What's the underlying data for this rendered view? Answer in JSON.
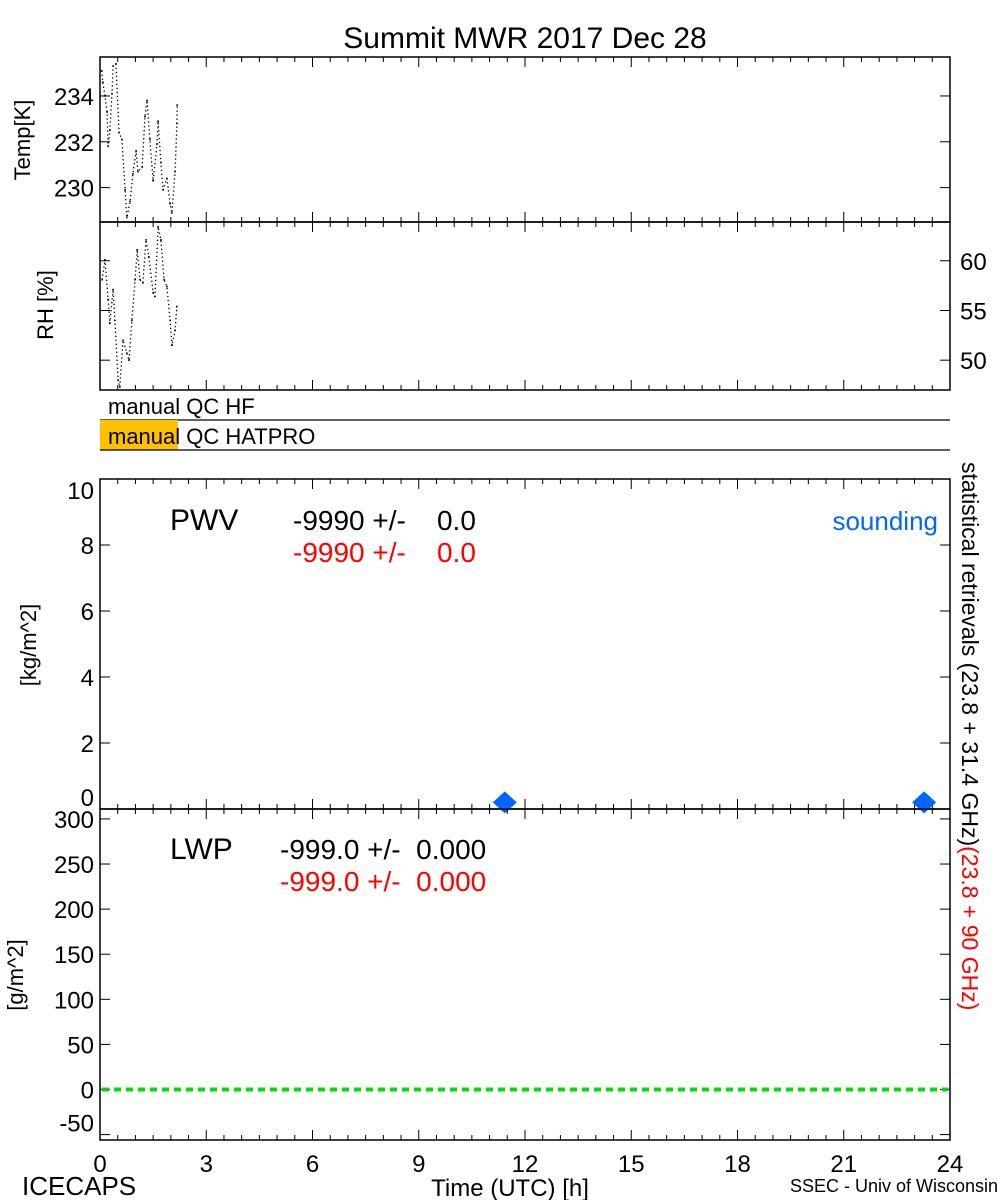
{
  "title": "Summit MWR 2017 Dec 28",
  "footer": {
    "left": "ICECAPS",
    "center": "Time (UTC) [h]",
    "right": "SSEC - Univ of Wisconsin"
  },
  "right_label": {
    "black": "statistical retrievals (23.8 + 31.4 GHz)",
    "red": "(23.8 + 90 GHz)"
  },
  "colors": {
    "red": "#ff0000",
    "blue": "#0066ff",
    "green": "#00dd00",
    "qc_flag": "#ffc000"
  },
  "xaxis": {
    "xlim": [
      0,
      24
    ],
    "ticks": [
      0,
      3,
      6,
      9,
      12,
      15,
      18,
      21,
      24
    ],
    "tick_labels": [
      "0",
      "3",
      "6",
      "9",
      "12",
      "15",
      "18",
      "21",
      "24"
    ]
  },
  "qc": [
    {
      "label": "manual QC HF",
      "flag_range_h": null
    },
    {
      "label": "manual QC HATPRO",
      "flag_range_h": [
        0,
        2.2
      ]
    }
  ],
  "chart_data": [
    {
      "type": "scatter",
      "panel": "temp",
      "ylabel": "Temp[K]",
      "ylim": [
        228.5,
        235.7
      ],
      "yticks": [
        230,
        232,
        234
      ],
      "ytick_side": "left",
      "x": [
        0.05,
        0.08,
        0.14,
        0.2,
        0.23,
        0.28,
        0.34,
        0.37,
        0.45,
        0.54,
        0.62,
        0.71,
        0.76,
        0.85,
        0.93,
        1.02,
        1.07,
        1.19,
        1.27,
        1.33,
        1.41,
        1.5,
        1.61,
        1.64,
        1.72,
        1.78,
        1.89,
        1.98,
        2.03,
        2.12,
        2.17,
        2.18
      ],
      "y": [
        235.1,
        234.6,
        234.0,
        233.3,
        231.8,
        232.5,
        234.1,
        235.3,
        235.4,
        232.4,
        232.1,
        229.9,
        228.7,
        229.4,
        230.6,
        231.6,
        230.7,
        230.9,
        233.1,
        233.8,
        232.1,
        230.3,
        231.9,
        232.9,
        231.1,
        229.9,
        230.4,
        229.3,
        228.9,
        230.7,
        232.8,
        233.6
      ]
    },
    {
      "type": "scatter",
      "panel": "rh",
      "ylabel": "RH [%]",
      "ylim": [
        47,
        63.9
      ],
      "yticks": [
        50,
        55,
        60
      ],
      "ytick_side": "right",
      "x": [
        0.06,
        0.14,
        0.23,
        0.28,
        0.37,
        0.42,
        0.51,
        0.56,
        0.65,
        0.76,
        0.82,
        0.9,
        0.99,
        1.05,
        1.13,
        1.21,
        1.3,
        1.38,
        1.5,
        1.55,
        1.64,
        1.72,
        1.81,
        1.89,
        1.98,
        2.03,
        2.12,
        2.17
      ],
      "y": [
        58.1,
        60.1,
        56.1,
        53.7,
        57.1,
        54.0,
        48.0,
        47.3,
        52.0,
        50.7,
        50.0,
        54.0,
        58.1,
        61.1,
        58.1,
        57.8,
        62.1,
        60.4,
        56.8,
        56.4,
        63.4,
        62.1,
        58.1,
        57.4,
        54.0,
        51.5,
        53.0,
        55.4
      ]
    },
    {
      "type": "scatter",
      "panel": "pwv",
      "ylabel": "[kg/m^2]",
      "ylim": [
        0,
        10
      ],
      "yticks": [
        0,
        2,
        4,
        6,
        8,
        10
      ],
      "ytick_side": "left",
      "label": "PWV",
      "value_black": "-9990 +/-    0.0",
      "value_red": "-9990 +/-    0.0",
      "series": [
        {
          "name": "sounding",
          "marker": "diamond",
          "x": [
            11.43,
            23.27
          ],
          "y": [
            0.2,
            0.2
          ]
        }
      ]
    },
    {
      "type": "line",
      "panel": "lwp",
      "ylabel": "[g/m^2]",
      "ylim": [
        -56,
        311
      ],
      "yticks": [
        -50,
        0,
        50,
        100,
        150,
        200,
        250,
        300
      ],
      "ytick_side": "left",
      "label": "LWP",
      "value_black": "-999.0 +/-  0.000",
      "value_red": "-999.0 +/-  0.000",
      "reference_line": {
        "y": 0,
        "style": "dashed"
      }
    }
  ]
}
